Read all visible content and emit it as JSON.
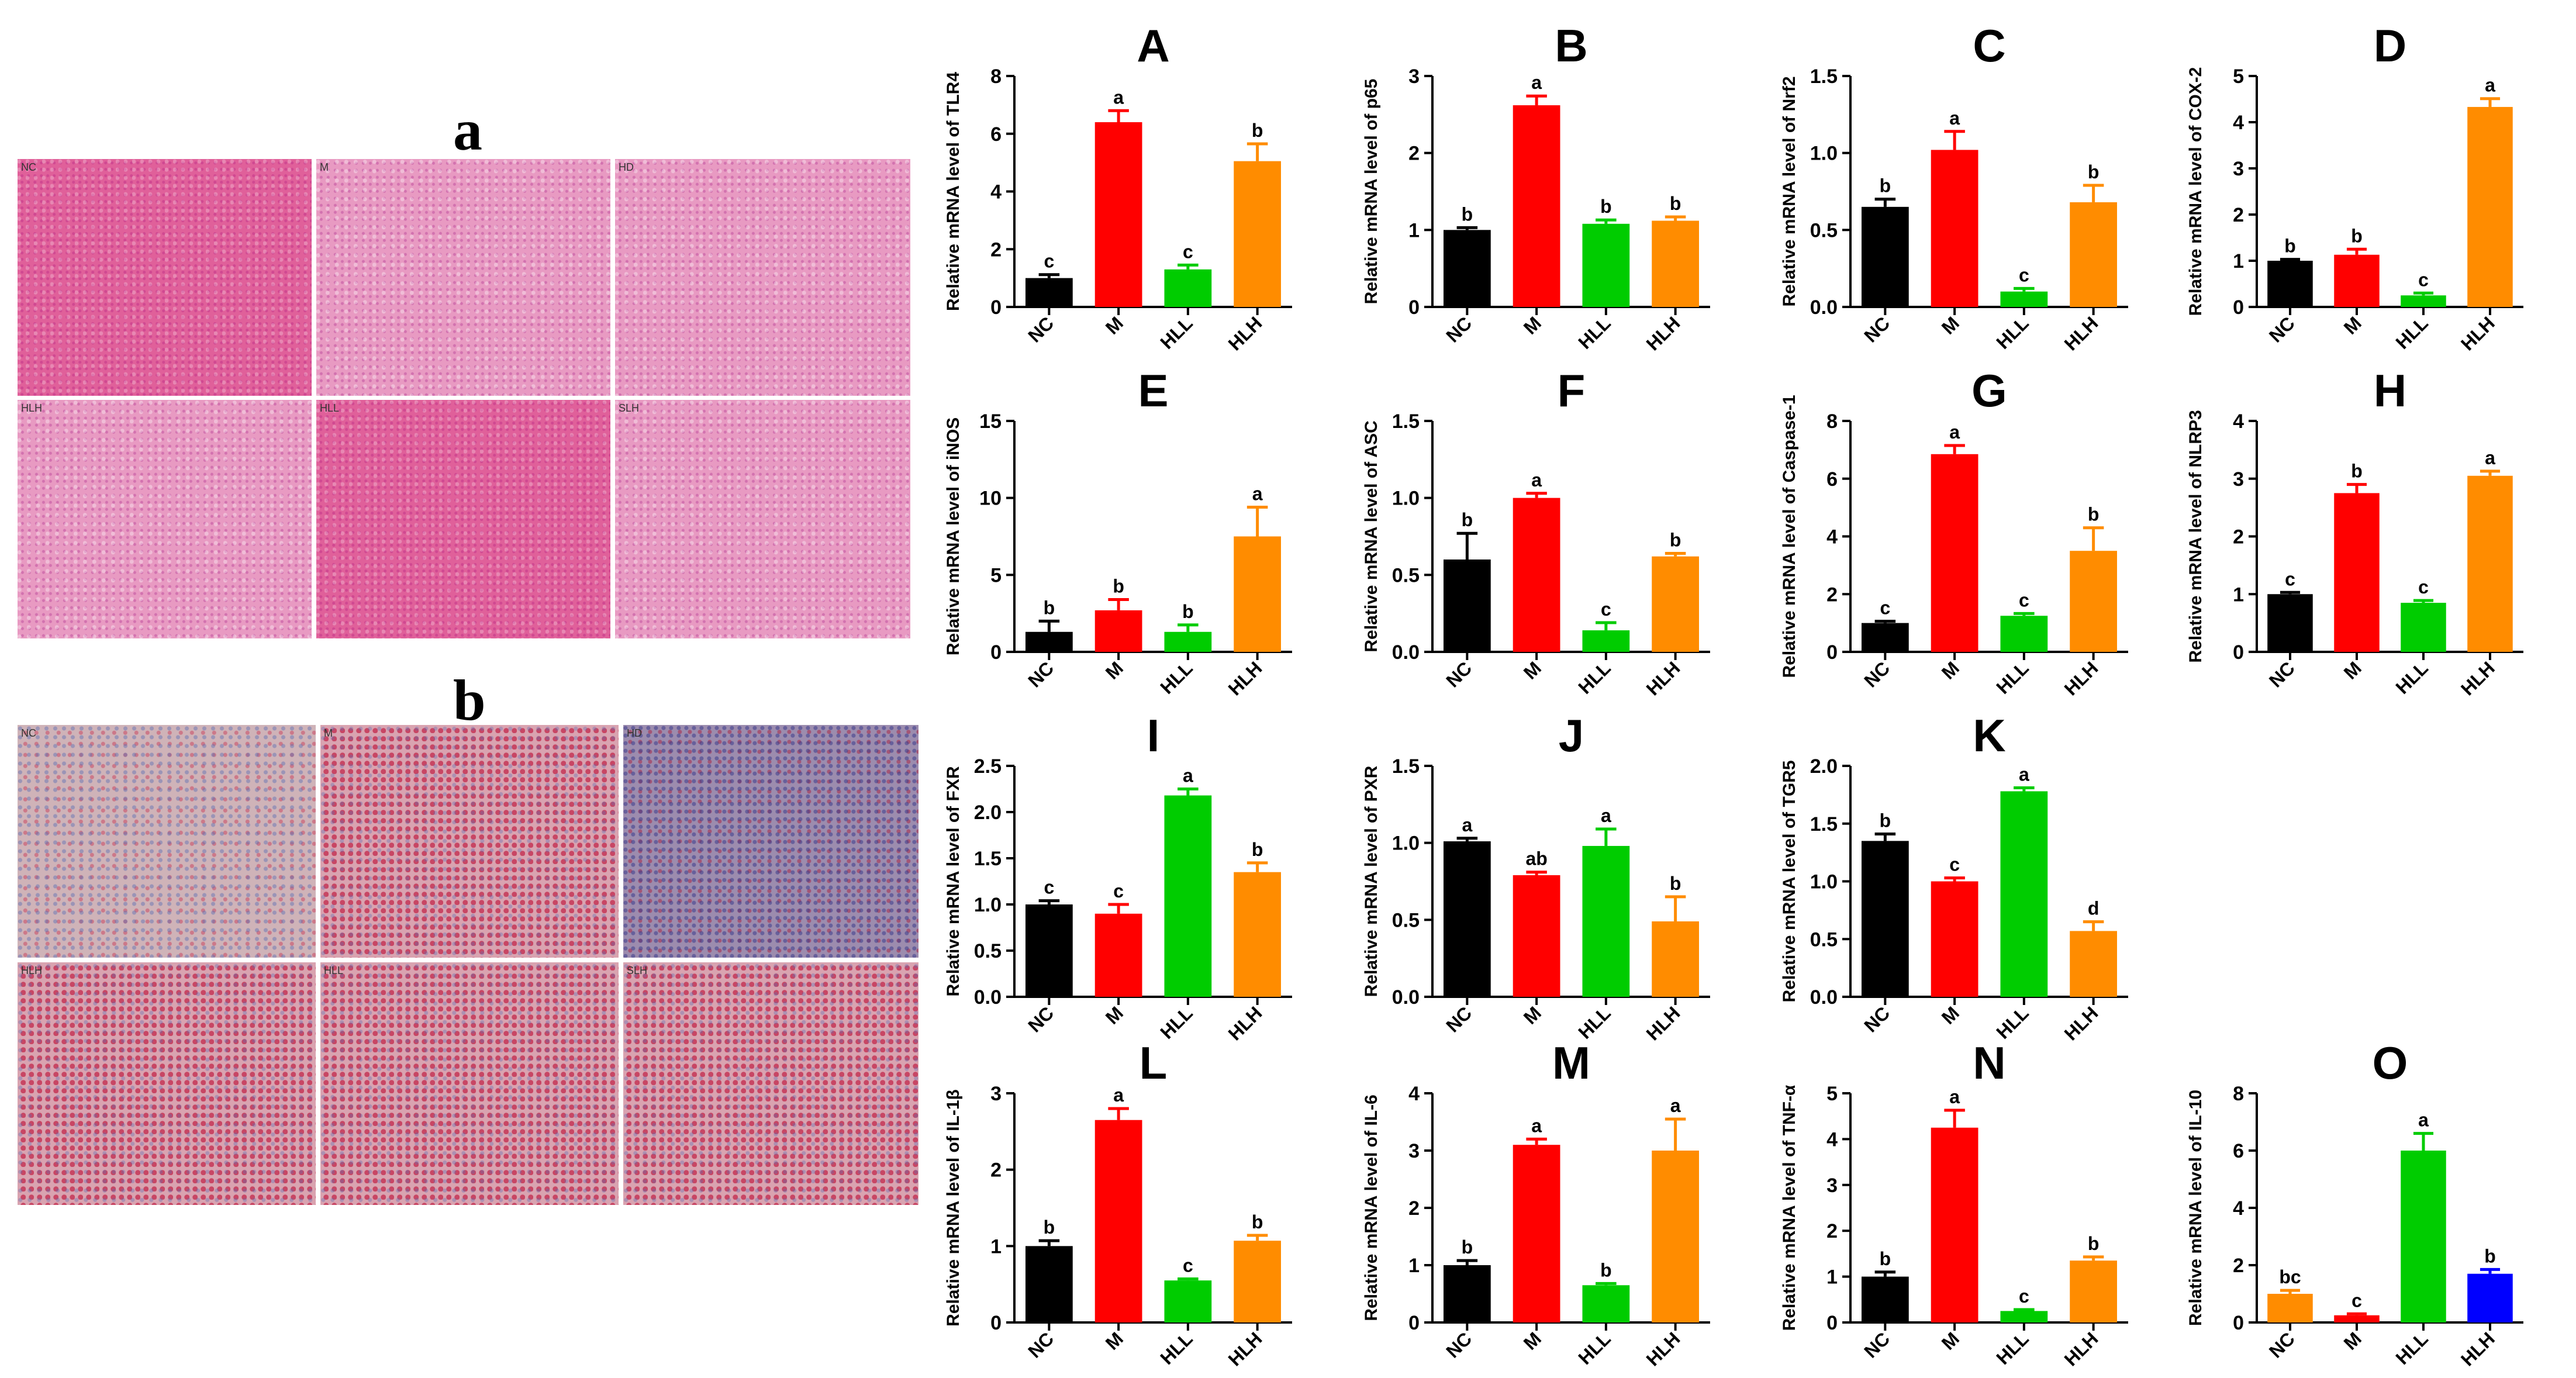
{
  "figure": {
    "panel_a_label": "a",
    "panel_b_label": "b",
    "micrographs": {
      "he": [
        "NC",
        "M",
        "HD",
        "HLH",
        "HLL",
        "SLH"
      ],
      "ihc": [
        "NC",
        "M",
        "HD",
        "HLH",
        "HLL",
        "SLH"
      ]
    }
  },
  "chart_data": [
    {
      "type": "bar",
      "letter": "A",
      "ylabel": "Relative mRNA level of TLR4",
      "categories": [
        "NC",
        "M",
        "HLL",
        "HLH"
      ],
      "values": [
        1.0,
        6.4,
        1.3,
        5.05
      ],
      "errors": [
        0.12,
        0.4,
        0.15,
        0.6
      ],
      "letters": [
        "c",
        "a",
        "c",
        "b"
      ],
      "colors": [
        "#000000",
        "#ff0000",
        "#00cc00",
        "#ff8c00"
      ],
      "ylim": [
        0,
        8
      ],
      "ticks": [
        "0",
        "2",
        "4",
        "6",
        "8"
      ]
    },
    {
      "type": "bar",
      "letter": "B",
      "ylabel": "Relative mRNA level of p65",
      "categories": [
        "NC",
        "M",
        "HLL",
        "HLH"
      ],
      "values": [
        1.0,
        2.62,
        1.08,
        1.12
      ],
      "errors": [
        0.03,
        0.12,
        0.05,
        0.05
      ],
      "letters": [
        "b",
        "a",
        "b",
        "b"
      ],
      "colors": [
        "#000000",
        "#ff0000",
        "#00cc00",
        "#ff8c00"
      ],
      "ylim": [
        0,
        3
      ],
      "ticks": [
        "0",
        "1",
        "2",
        "3"
      ]
    },
    {
      "type": "bar",
      "letter": "C",
      "ylabel": "Relative mRNA level of Nrf2",
      "categories": [
        "NC",
        "M",
        "HLL",
        "HLH"
      ],
      "values": [
        0.65,
        1.02,
        0.1,
        0.68
      ],
      "errors": [
        0.05,
        0.12,
        0.02,
        0.11
      ],
      "letters": [
        "b",
        "a",
        "c",
        "b"
      ],
      "colors": [
        "#000000",
        "#ff0000",
        "#00cc00",
        "#ff8c00"
      ],
      "ylim": [
        0,
        1.5
      ],
      "ticks": [
        "0.0",
        "0.5",
        "1.0",
        "1.5"
      ]
    },
    {
      "type": "bar",
      "letter": "D",
      "ylabel": "Relative mRNA level of COX-2",
      "categories": [
        "NC",
        "M",
        "HLL",
        "HLH"
      ],
      "values": [
        1.0,
        1.13,
        0.25,
        4.33
      ],
      "errors": [
        0.03,
        0.12,
        0.05,
        0.18
      ],
      "letters": [
        "b",
        "b",
        "c",
        "a"
      ],
      "colors": [
        "#000000",
        "#ff0000",
        "#00cc00",
        "#ff8c00"
      ],
      "ylim": [
        0,
        5
      ],
      "ticks": [
        "0",
        "1",
        "2",
        "3",
        "4",
        "5"
      ]
    },
    {
      "type": "bar",
      "letter": "E",
      "ylabel": "Relative mRNA level of iNOS",
      "categories": [
        "NC",
        "M",
        "HLL",
        "HLH"
      ],
      "values": [
        1.3,
        2.7,
        1.3,
        7.5
      ],
      "errors": [
        0.7,
        0.7,
        0.45,
        1.9
      ],
      "letters": [
        "b",
        "b",
        "b",
        "a"
      ],
      "colors": [
        "#000000",
        "#ff0000",
        "#00cc00",
        "#ff8c00"
      ],
      "ylim": [
        0,
        15
      ],
      "ticks": [
        "0",
        "5",
        "10",
        "15"
      ]
    },
    {
      "type": "bar",
      "letter": "F",
      "ylabel": "Relative mRNA level of ASC",
      "categories": [
        "NC",
        "M",
        "HLL",
        "HLH"
      ],
      "values": [
        0.6,
        1.0,
        0.14,
        0.62
      ],
      "errors": [
        0.17,
        0.03,
        0.05,
        0.02
      ],
      "letters": [
        "b",
        "a",
        "c",
        "b"
      ],
      "colors": [
        "#000000",
        "#ff0000",
        "#00cc00",
        "#ff8c00"
      ],
      "ylim": [
        0,
        1.5
      ],
      "ticks": [
        "0.0",
        "0.5",
        "1.0",
        "1.5"
      ]
    },
    {
      "type": "bar",
      "letter": "G",
      "ylabel": "Relative mRNA level of Caspase-1",
      "categories": [
        "NC",
        "M",
        "HLL",
        "HLH"
      ],
      "values": [
        1.0,
        6.85,
        1.25,
        3.5
      ],
      "errors": [
        0.06,
        0.3,
        0.08,
        0.8
      ],
      "letters": [
        "c",
        "a",
        "c",
        "b"
      ],
      "colors": [
        "#000000",
        "#ff0000",
        "#00cc00",
        "#ff8c00"
      ],
      "ylim": [
        0,
        8
      ],
      "ticks": [
        "0",
        "2",
        "4",
        "6",
        "8"
      ]
    },
    {
      "type": "bar",
      "letter": "H",
      "ylabel": "Relative mRNA level of NLRP3",
      "categories": [
        "NC",
        "M",
        "HLL",
        "HLH"
      ],
      "values": [
        1.0,
        2.75,
        0.85,
        3.05
      ],
      "errors": [
        0.03,
        0.15,
        0.04,
        0.08
      ],
      "letters": [
        "c",
        "b",
        "c",
        "a"
      ],
      "colors": [
        "#000000",
        "#ff0000",
        "#00cc00",
        "#ff8c00"
      ],
      "ylim": [
        0,
        4
      ],
      "ticks": [
        "0",
        "1",
        "2",
        "3",
        "4"
      ]
    },
    {
      "type": "bar",
      "letter": "I",
      "ylabel": "Relative mRNA level of FXR",
      "categories": [
        "NC",
        "M",
        "HLL",
        "HLH"
      ],
      "values": [
        1.0,
        0.9,
        2.18,
        1.35
      ],
      "errors": [
        0.04,
        0.1,
        0.07,
        0.1
      ],
      "letters": [
        "c",
        "c",
        "a",
        "b"
      ],
      "colors": [
        "#000000",
        "#ff0000",
        "#00cc00",
        "#ff8c00"
      ],
      "ylim": [
        0,
        2.5
      ],
      "ticks": [
        "0.0",
        "0.5",
        "1.0",
        "1.5",
        "2.0",
        "2.5"
      ]
    },
    {
      "type": "bar",
      "letter": "J",
      "ylabel": "Relative mRNA level of PXR",
      "categories": [
        "NC",
        "M",
        "HLL",
        "HLH"
      ],
      "values": [
        1.01,
        0.79,
        0.98,
        0.49
      ],
      "errors": [
        0.02,
        0.02,
        0.11,
        0.16
      ],
      "letters": [
        "a",
        "ab",
        "a",
        "b"
      ],
      "colors": [
        "#000000",
        "#ff0000",
        "#00cc00",
        "#ff8c00"
      ],
      "ylim": [
        0,
        1.5
      ],
      "ticks": [
        "0.0",
        "0.5",
        "1.0",
        "1.5"
      ]
    },
    {
      "type": "bar",
      "letter": "K",
      "ylabel": "Relative mRNA level of TGR5",
      "categories": [
        "NC",
        "M",
        "HLL",
        "HLH"
      ],
      "values": [
        1.35,
        1.0,
        1.78,
        0.57
      ],
      "errors": [
        0.06,
        0.03,
        0.03,
        0.08
      ],
      "letters": [
        "b",
        "c",
        "a",
        "d"
      ],
      "colors": [
        "#000000",
        "#ff0000",
        "#00cc00",
        "#ff8c00"
      ],
      "ylim": [
        0,
        2.0
      ],
      "ticks": [
        "0.0",
        "0.5",
        "1.0",
        "1.5",
        "2.0"
      ]
    },
    {
      "type": "bar",
      "letter": "L",
      "ylabel": "Relative mRNA level of IL-1β",
      "categories": [
        "NC",
        "M",
        "HLL",
        "HLH"
      ],
      "values": [
        1.0,
        2.65,
        0.55,
        1.07
      ],
      "errors": [
        0.07,
        0.15,
        0.02,
        0.07
      ],
      "letters": [
        "b",
        "a",
        "c",
        "b"
      ],
      "colors": [
        "#000000",
        "#ff0000",
        "#00cc00",
        "#ff8c00"
      ],
      "ylim": [
        0,
        3
      ],
      "ticks": [
        "0",
        "1",
        "2",
        "3"
      ]
    },
    {
      "type": "bar",
      "letter": "M",
      "ylabel": "Relative mRNA level of IL-6",
      "categories": [
        "NC",
        "M",
        "HLL",
        "HLH"
      ],
      "values": [
        1.0,
        3.1,
        0.65,
        3.0
      ],
      "errors": [
        0.08,
        0.1,
        0.03,
        0.55
      ],
      "letters": [
        "b",
        "a",
        "b",
        "a"
      ],
      "colors": [
        "#000000",
        "#ff0000",
        "#00cc00",
        "#ff8c00"
      ],
      "ylim": [
        0,
        4
      ],
      "ticks": [
        "0",
        "1",
        "2",
        "3",
        "4"
      ]
    },
    {
      "type": "bar",
      "letter": "N",
      "ylabel": "Relative mRNA level of TNF-α",
      "categories": [
        "NC",
        "M",
        "HLL",
        "HLH"
      ],
      "values": [
        1.0,
        4.25,
        0.25,
        1.35
      ],
      "errors": [
        0.1,
        0.38,
        0.03,
        0.08
      ],
      "letters": [
        "b",
        "a",
        "c",
        "b"
      ],
      "colors": [
        "#000000",
        "#ff0000",
        "#00cc00",
        "#ff8c00"
      ],
      "ylim": [
        0,
        5
      ],
      "ticks": [
        "0",
        "1",
        "2",
        "3",
        "4",
        "5"
      ]
    },
    {
      "type": "bar",
      "letter": "O",
      "ylabel": "Relative mRNA level of IL-10",
      "categories": [
        "NC",
        "M",
        "HLL",
        "HLH"
      ],
      "values": [
        1.0,
        0.25,
        6.0,
        1.7
      ],
      "errors": [
        0.12,
        0.05,
        0.6,
        0.15
      ],
      "letters": [
        "bc",
        "c",
        "a",
        "b"
      ],
      "colors": [
        "#ff8c00",
        "#ff0000",
        "#00cc00",
        "#0000ff"
      ],
      "ylim": [
        0,
        8
      ],
      "ticks": [
        "0",
        "2",
        "4",
        "6",
        "8"
      ]
    }
  ]
}
